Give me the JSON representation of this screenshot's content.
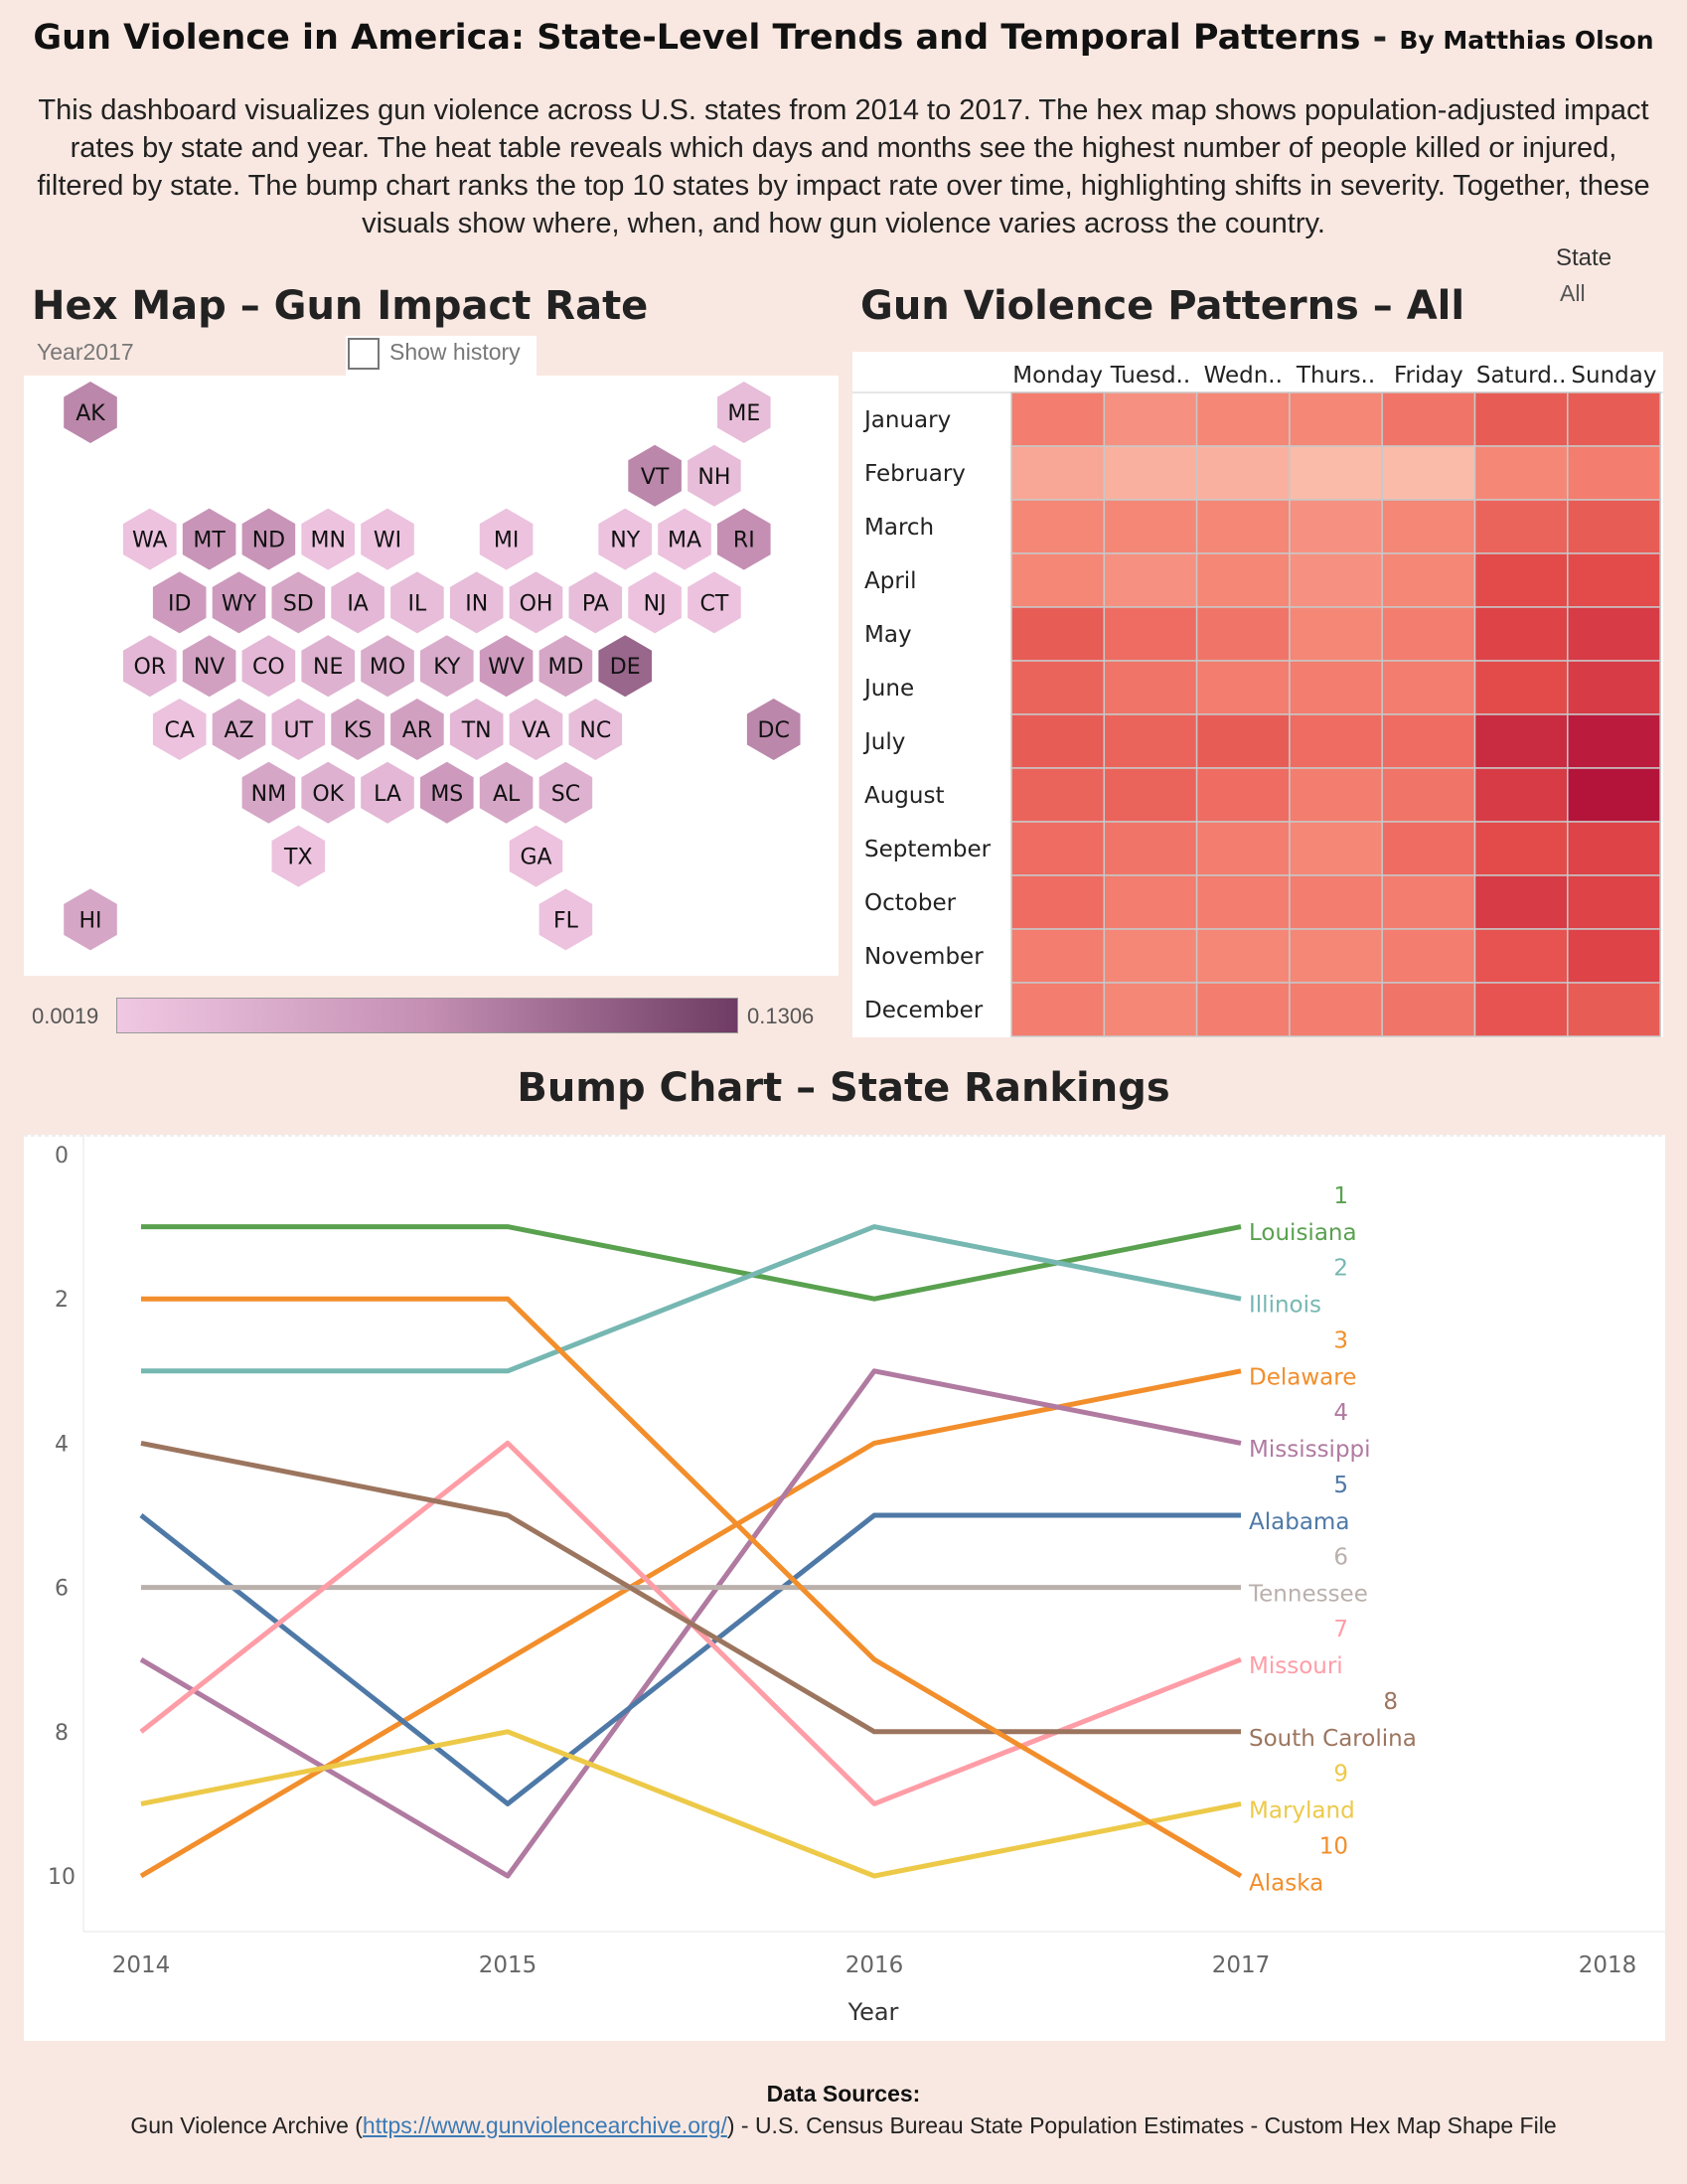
{
  "header": {
    "title": "Gun Violence in America: State-Level Trends and Temporal Patterns",
    "separator": " - ",
    "byline": "By Matthias Olson",
    "description": "This dashboard visualizes gun violence across U.S. states from 2014 to 2017. The hex map shows population-adjusted impact rates by state and year. The heat table reveals which days and months see the highest number of people killed or injured, filtered by state. The bump chart ranks the top 10 states by impact rate over time, highlighting shifts in severity. Together, these visuals show where, when, and how gun violence varies across the country."
  },
  "filter": {
    "label": "State",
    "value": "All"
  },
  "hex_map": {
    "title": "Hex Map – Gun Impact Rate",
    "year_param": "Year2017",
    "show_history_label": "Show history",
    "show_history_checked": false,
    "legend_min": "0.0019",
    "legend_max": "0.1306",
    "legend_colors": [
      "#f0c8e3",
      "#c48fb3",
      "#6e3c64"
    ]
  },
  "heat_table": {
    "title": "Gun Violence Patterns – All"
  },
  "bump": {
    "title": "Bump Chart – State Rankings"
  },
  "sources": {
    "heading": "Data Sources:",
    "prefix": "Gun Violence Archive (",
    "link": "https://www.gunviolencearchive.org/",
    "suffix": ") - U.S. Census Bureau State Population Estimates - Custom Hex Map Shape File"
  },
  "chart_data": [
    {
      "type": "heatmap",
      "subtype": "hex-map",
      "title": "Hex Map – Gun Impact Rate",
      "year": "2017",
      "color_range": [
        0.0019,
        0.1306
      ],
      "color_scale": [
        "#f0c8e3",
        "#c48fb3",
        "#6e3c64"
      ],
      "states": [
        {
          "code": "AK",
          "row": 0,
          "col": 0,
          "level": 0.55
        },
        {
          "code": "ME",
          "row": 0,
          "col": 11,
          "level": 0.1
        },
        {
          "code": "VT",
          "row": 1,
          "col": 9.5,
          "level": 0.55
        },
        {
          "code": "NH",
          "row": 1,
          "col": 10.5,
          "level": 0.1
        },
        {
          "code": "WA",
          "row": 2,
          "col": 1,
          "level": 0.05
        },
        {
          "code": "MT",
          "row": 2,
          "col": 2,
          "level": 0.45
        },
        {
          "code": "ND",
          "row": 2,
          "col": 3,
          "level": 0.45
        },
        {
          "code": "MN",
          "row": 2,
          "col": 4,
          "level": 0.05
        },
        {
          "code": "WI",
          "row": 2,
          "col": 5,
          "level": 0.05
        },
        {
          "code": "MI",
          "row": 2,
          "col": 7,
          "level": 0.05
        },
        {
          "code": "NY",
          "row": 2,
          "col": 9,
          "level": 0.05
        },
        {
          "code": "MA",
          "row": 2,
          "col": 10,
          "level": 0.05
        },
        {
          "code": "RI",
          "row": 2,
          "col": 11,
          "level": 0.5
        },
        {
          "code": "ID",
          "row": 3,
          "col": 1.5,
          "level": 0.4
        },
        {
          "code": "WY",
          "row": 3,
          "col": 2.5,
          "level": 0.4
        },
        {
          "code": "SD",
          "row": 3,
          "col": 3.5,
          "level": 0.3
        },
        {
          "code": "IA",
          "row": 3,
          "col": 4.5,
          "level": 0.15
        },
        {
          "code": "IL",
          "row": 3,
          "col": 5.5,
          "level": 0.1
        },
        {
          "code": "IN",
          "row": 3,
          "col": 6.5,
          "level": 0.1
        },
        {
          "code": "OH",
          "row": 3,
          "col": 7.5,
          "level": 0.1
        },
        {
          "code": "PA",
          "row": 3,
          "col": 8.5,
          "level": 0.1
        },
        {
          "code": "NJ",
          "row": 3,
          "col": 9.5,
          "level": 0.05
        },
        {
          "code": "CT",
          "row": 3,
          "col": 10.5,
          "level": 0.05
        },
        {
          "code": "OR",
          "row": 4,
          "col": 1,
          "level": 0.15
        },
        {
          "code": "NV",
          "row": 4,
          "col": 2,
          "level": 0.35
        },
        {
          "code": "CO",
          "row": 4,
          "col": 3,
          "level": 0.15
        },
        {
          "code": "NE",
          "row": 4,
          "col": 4,
          "level": 0.2
        },
        {
          "code": "MO",
          "row": 4,
          "col": 5,
          "level": 0.25
        },
        {
          "code": "KY",
          "row": 4,
          "col": 6,
          "level": 0.25
        },
        {
          "code": "WV",
          "row": 4,
          "col": 7,
          "level": 0.4
        },
        {
          "code": "MD",
          "row": 4,
          "col": 8,
          "level": 0.3
        },
        {
          "code": "DE",
          "row": 4,
          "col": 9,
          "level": 0.75
        },
        {
          "code": "CA",
          "row": 5,
          "col": 1.5,
          "level": 0.05
        },
        {
          "code": "AZ",
          "row": 5,
          "col": 2.5,
          "level": 0.25
        },
        {
          "code": "UT",
          "row": 5,
          "col": 3.5,
          "level": 0.15
        },
        {
          "code": "KS",
          "row": 5,
          "col": 4.5,
          "level": 0.3
        },
        {
          "code": "AR",
          "row": 5,
          "col": 5.5,
          "level": 0.35
        },
        {
          "code": "TN",
          "row": 5,
          "col": 6.5,
          "level": 0.15
        },
        {
          "code": "VA",
          "row": 5,
          "col": 7.5,
          "level": 0.1
        },
        {
          "code": "NC",
          "row": 5,
          "col": 8.5,
          "level": 0.1
        },
        {
          "code": "DC",
          "row": 5,
          "col": 11.5,
          "level": 0.55
        },
        {
          "code": "NM",
          "row": 6,
          "col": 3,
          "level": 0.3
        },
        {
          "code": "OK",
          "row": 6,
          "col": 4,
          "level": 0.2
        },
        {
          "code": "LA",
          "row": 6,
          "col": 5,
          "level": 0.15
        },
        {
          "code": "MS",
          "row": 6,
          "col": 6,
          "level": 0.4
        },
        {
          "code": "AL",
          "row": 6,
          "col": 7,
          "level": 0.3
        },
        {
          "code": "SC",
          "row": 6,
          "col": 8,
          "level": 0.2
        },
        {
          "code": "TX",
          "row": 7,
          "col": 3.5,
          "level": 0.05
        },
        {
          "code": "GA",
          "row": 7,
          "col": 7.5,
          "level": 0.05
        },
        {
          "code": "HI",
          "row": 8,
          "col": 0,
          "level": 0.3
        },
        {
          "code": "FL",
          "row": 8,
          "col": 8,
          "level": 0.05
        }
      ]
    },
    {
      "type": "heatmap",
      "title": "Gun Violence Patterns – All",
      "columns": [
        "Monday",
        "Tuesd..",
        "Wedn..",
        "Thurs..",
        "Friday",
        "Saturd..",
        "Sunday"
      ],
      "rows": [
        "January",
        "February",
        "March",
        "April",
        "May",
        "June",
        "July",
        "August",
        "September",
        "October",
        "November",
        "December"
      ],
      "values": [
        [
          0.35,
          0.25,
          0.3,
          0.3,
          0.4,
          0.55,
          0.55
        ],
        [
          0.15,
          0.1,
          0.1,
          0.05,
          0.05,
          0.3,
          0.35
        ],
        [
          0.3,
          0.3,
          0.3,
          0.25,
          0.3,
          0.5,
          0.55
        ],
        [
          0.3,
          0.25,
          0.3,
          0.25,
          0.3,
          0.65,
          0.65
        ],
        [
          0.55,
          0.45,
          0.4,
          0.3,
          0.35,
          0.7,
          0.75
        ],
        [
          0.5,
          0.4,
          0.35,
          0.35,
          0.35,
          0.65,
          0.75
        ],
        [
          0.55,
          0.5,
          0.55,
          0.45,
          0.45,
          0.85,
          0.95
        ],
        [
          0.5,
          0.5,
          0.45,
          0.35,
          0.4,
          0.75,
          1.0
        ],
        [
          0.45,
          0.4,
          0.35,
          0.3,
          0.45,
          0.65,
          0.7
        ],
        [
          0.45,
          0.35,
          0.35,
          0.35,
          0.35,
          0.75,
          0.7
        ],
        [
          0.35,
          0.3,
          0.3,
          0.3,
          0.35,
          0.6,
          0.7
        ],
        [
          0.35,
          0.3,
          0.35,
          0.35,
          0.4,
          0.6,
          0.55
        ]
      ],
      "color_scale": [
        "#fcc5b3",
        "#f48070",
        "#e24848",
        "#b4133a"
      ]
    },
    {
      "type": "line",
      "subtype": "bump",
      "title": "Bump Chart – State Rankings",
      "xlabel": "Year",
      "ylabel": "",
      "x_ticks": [
        "2014",
        "2015",
        "2016",
        "2017",
        "2018"
      ],
      "x": [
        2014,
        2015,
        2016,
        2017
      ],
      "xlim": [
        2014,
        2018
      ],
      "ylim": [
        0,
        11
      ],
      "y_ticks": [
        "0",
        "2",
        "4",
        "6",
        "8",
        "10"
      ],
      "y_reversed": true,
      "series": [
        {
          "name": "Louisiana",
          "rank_label": "1",
          "color": "#59a14f",
          "values": [
            1,
            1,
            2,
            1
          ]
        },
        {
          "name": "Illinois",
          "rank_label": "2",
          "color": "#76b7b2",
          "values": [
            3,
            3,
            1,
            2
          ]
        },
        {
          "name": "Delaware",
          "rank_label": "3",
          "color": "#f28e2b",
          "values": [
            10,
            7,
            4,
            3
          ]
        },
        {
          "name": "Mississippi",
          "rank_label": "4",
          "color": "#b07aa1",
          "values": [
            7,
            10,
            3,
            4
          ]
        },
        {
          "name": "Alabama",
          "rank_label": "5",
          "color": "#4e79a7",
          "values": [
            5,
            9,
            5,
            5
          ]
        },
        {
          "name": "Tennessee",
          "rank_label": "6",
          "color": "#bab0ac",
          "values": [
            6,
            6,
            6,
            6
          ]
        },
        {
          "name": "Missouri",
          "rank_label": "7",
          "color": "#ff9da7",
          "values": [
            8,
            4,
            9,
            7
          ]
        },
        {
          "name": "South Carolina",
          "rank_label": "8",
          "color": "#9c755f",
          "values": [
            4,
            5,
            8,
            8
          ]
        },
        {
          "name": "Maryland",
          "rank_label": "9",
          "color": "#edc948",
          "values": [
            9,
            8,
            10,
            9
          ]
        },
        {
          "name": "Alaska",
          "rank_label": "10",
          "color": "#f28e2b",
          "values": [
            2,
            2,
            7,
            10
          ]
        }
      ]
    }
  ]
}
